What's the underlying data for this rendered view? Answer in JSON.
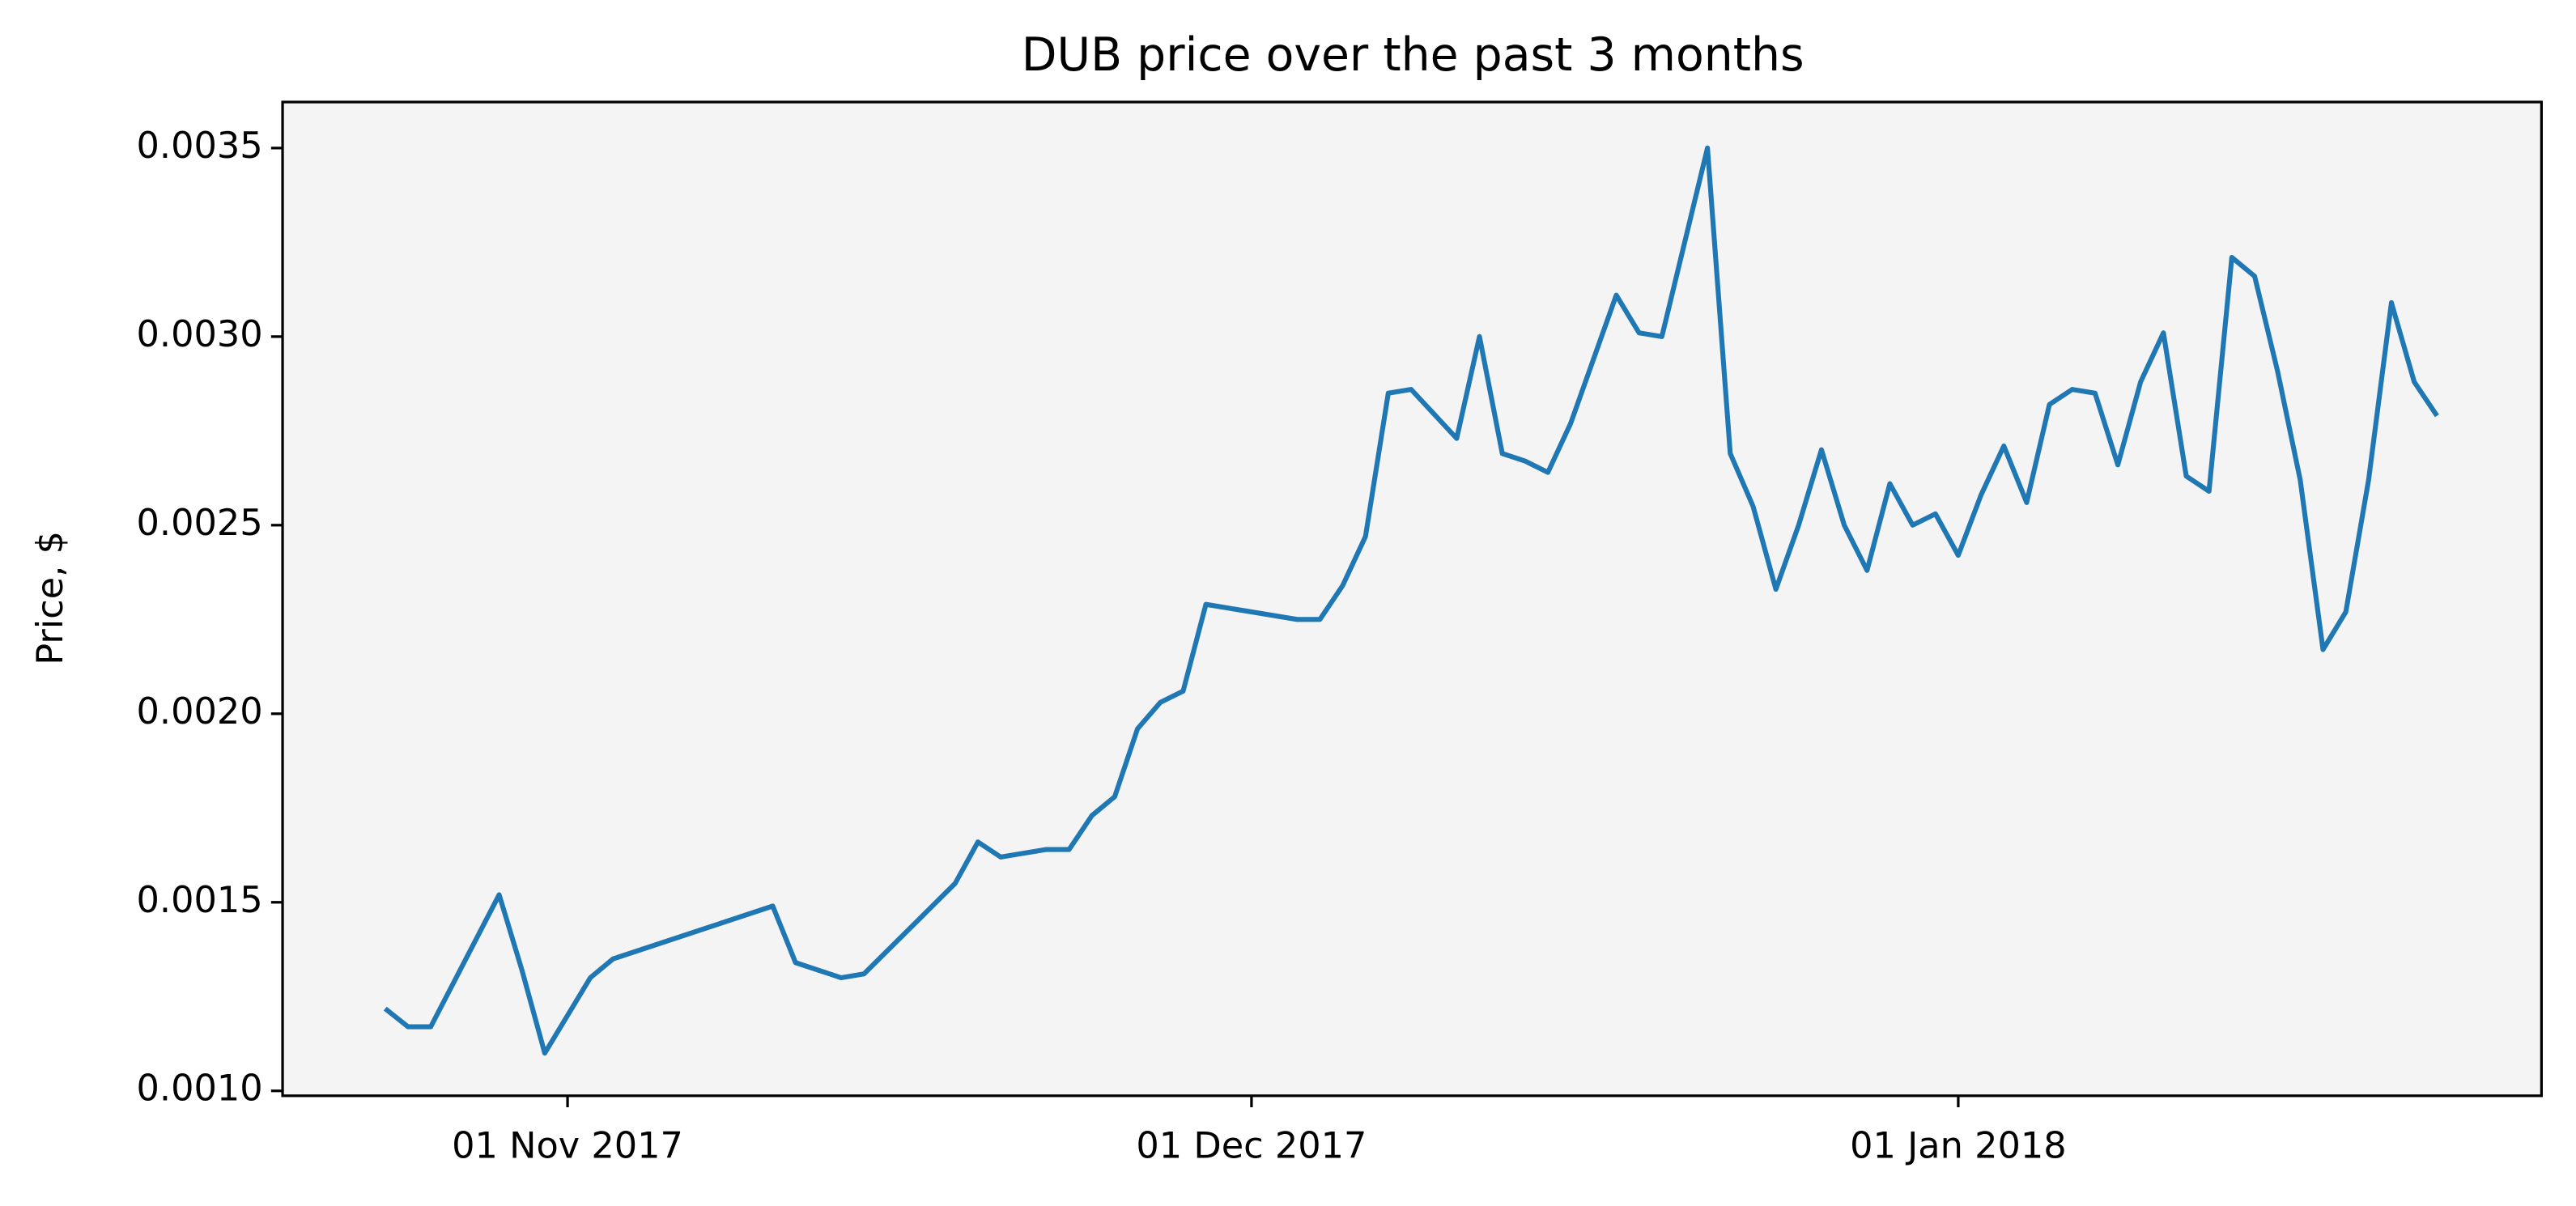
{
  "chart_data": {
    "type": "line",
    "title": "DUB price over the past 3 months",
    "ylabel": "Price, $",
    "x": [
      "2017-10-24",
      "2017-10-25",
      "2017-10-26",
      "2017-10-29",
      "2017-10-30",
      "2017-10-31",
      "2017-11-01",
      "2017-11-02",
      "2017-11-03",
      "2017-11-10",
      "2017-11-11",
      "2017-11-13",
      "2017-11-14",
      "2017-11-18",
      "2017-11-19",
      "2017-11-20",
      "2017-11-22",
      "2017-11-23",
      "2017-11-24",
      "2017-11-25",
      "2017-11-26",
      "2017-11-27",
      "2017-11-28",
      "2017-11-29",
      "2017-12-03",
      "2017-12-04",
      "2017-12-05",
      "2017-12-06",
      "2017-12-07",
      "2017-12-08",
      "2017-12-10",
      "2017-12-11",
      "2017-12-12",
      "2017-12-13",
      "2017-12-14",
      "2017-12-15",
      "2017-12-17",
      "2017-12-18",
      "2017-12-19",
      "2017-12-21",
      "2017-12-22",
      "2017-12-23",
      "2017-12-24",
      "2017-12-25",
      "2017-12-26",
      "2017-12-27",
      "2017-12-28",
      "2017-12-29",
      "2017-12-30",
      "2017-12-31",
      "2018-01-01",
      "2018-01-02",
      "2018-01-03",
      "2018-01-04",
      "2018-01-05",
      "2018-01-06",
      "2018-01-07",
      "2018-01-08",
      "2018-01-09",
      "2018-01-10",
      "2018-01-11",
      "2018-01-12",
      "2018-01-13",
      "2018-01-14",
      "2018-01-15",
      "2018-01-16",
      "2018-01-17",
      "2018-01-18",
      "2018-01-19",
      "2018-01-20",
      "2018-01-21",
      "2018-01-22"
    ],
    "series": [
      {
        "name": "DUB",
        "color": "#1f77b4",
        "values": [
          0.001218,
          0.00117,
          0.00117,
          0.00152,
          0.00132,
          0.0011,
          0.0012,
          0.0013,
          0.00135,
          0.00149,
          0.00134,
          0.0013,
          0.00131,
          0.00155,
          0.00166,
          0.00162,
          0.00164,
          0.00164,
          0.00173,
          0.00178,
          0.00196,
          0.00203,
          0.00206,
          0.00229,
          0.00225,
          0.00225,
          0.00234,
          0.00247,
          0.00285,
          0.00286,
          0.00273,
          0.003,
          0.00269,
          0.00267,
          0.00264,
          0.00277,
          0.00311,
          0.00301,
          0.003,
          0.0035,
          0.00269,
          0.00255,
          0.00233,
          0.0025,
          0.0027,
          0.0025,
          0.00238,
          0.00261,
          0.0025,
          0.00253,
          0.00242,
          0.00258,
          0.00271,
          0.00256,
          0.00282,
          0.00286,
          0.00285,
          0.00266,
          0.00288,
          0.00301,
          0.00263,
          0.00259,
          0.00321,
          0.00316,
          0.00291,
          0.00262,
          0.00217,
          0.00227,
          0.00262,
          0.00309,
          0.00288,
          0.00279
        ]
      }
    ],
    "xlim": [
      "2017-10-19T12:00",
      "2018-01-26T14:00"
    ],
    "xticks": [
      {
        "value": "2017-11-01",
        "label": "01 Nov 2017"
      },
      {
        "value": "2017-12-01",
        "label": "01 Dec 2017"
      },
      {
        "value": "2018-01-01",
        "label": "01 Jan 2018"
      }
    ],
    "ylim": [
      0.000987,
      0.003622
    ],
    "yticks": [
      {
        "value": 0.001,
        "label": "0.0010"
      },
      0.0015,
      {
        "value": 0.002,
        "label": "0.0020"
      },
      0.0025,
      {
        "value": 0.003,
        "label": "0.0030"
      },
      0.0035
    ],
    "plot_background": "#f4f4f4",
    "grid": false,
    "legend": false
  }
}
